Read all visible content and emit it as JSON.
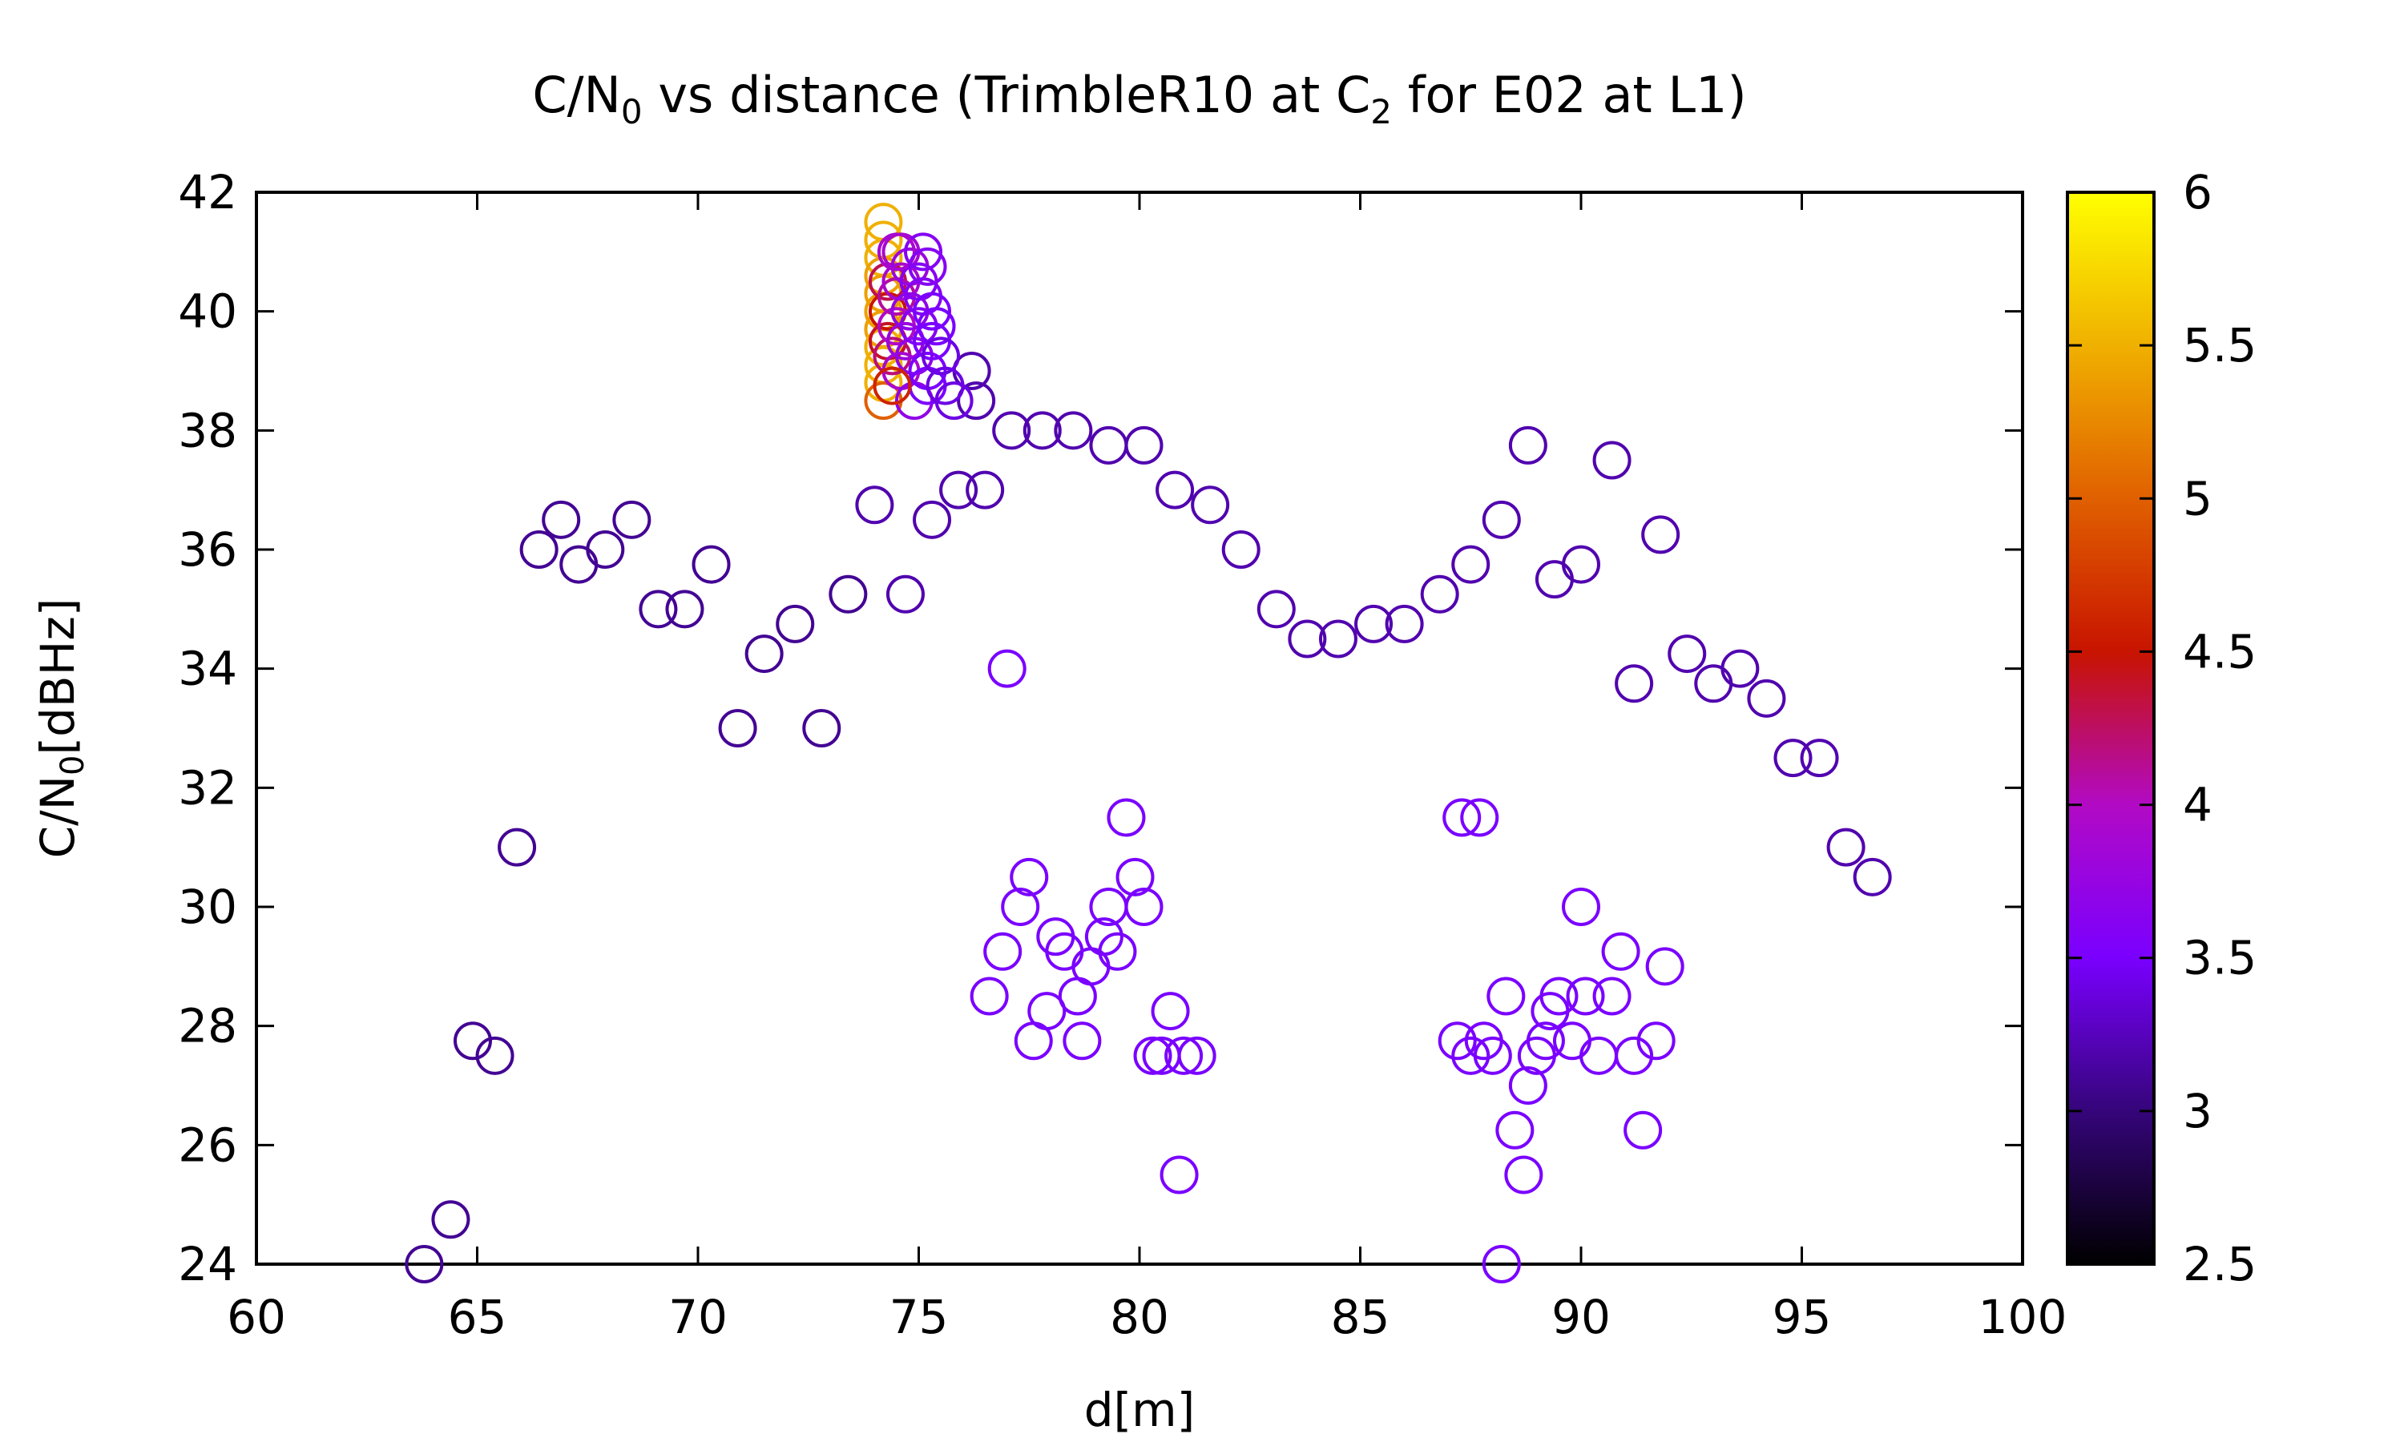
{
  "chart_data": {
    "type": "scatter",
    "title_main": "C/N",
    "title_main_sub": "0",
    "title_mid": " vs distance (TrimbleR10 at C",
    "title_mid_sub": "2",
    "title_end": " for E02 at L1)",
    "xlabel": "d[m]",
    "ylabel_main": "C/N",
    "ylabel_sub": "0",
    "ylabel_end": "[dBHz]",
    "xlim": [
      60,
      100
    ],
    "ylim": [
      24,
      42
    ],
    "xticks": [
      "60",
      "65",
      "70",
      "75",
      "80",
      "85",
      "90",
      "95",
      "100"
    ],
    "yticks": [
      "24",
      "26",
      "28",
      "30",
      "32",
      "34",
      "36",
      "38",
      "40",
      "42"
    ],
    "colorbar": {
      "range": [
        2.5,
        6
      ],
      "ticks": [
        "2.5",
        "3",
        "3.5",
        "4",
        "4.5",
        "5",
        "5.5",
        "6"
      ]
    },
    "points": [
      {
        "x": 63.8,
        "y": 24.0,
        "c": 3.1
      },
      {
        "x": 64.4,
        "y": 24.75,
        "c": 3.1
      },
      {
        "x": 64.9,
        "y": 27.75,
        "c": 3.1
      },
      {
        "x": 65.4,
        "y": 27.5,
        "c": 3.1
      },
      {
        "x": 65.9,
        "y": 31.0,
        "c": 3.1
      },
      {
        "x": 66.4,
        "y": 36.0,
        "c": 3.1
      },
      {
        "x": 66.9,
        "y": 36.5,
        "c": 3.1
      },
      {
        "x": 67.3,
        "y": 35.75,
        "c": 3.1
      },
      {
        "x": 67.9,
        "y": 36.0,
        "c": 3.1
      },
      {
        "x": 68.5,
        "y": 36.5,
        "c": 3.1
      },
      {
        "x": 69.1,
        "y": 35.0,
        "c": 3.1
      },
      {
        "x": 69.7,
        "y": 35.0,
        "c": 3.1
      },
      {
        "x": 70.3,
        "y": 35.75,
        "c": 3.1
      },
      {
        "x": 70.9,
        "y": 33.0,
        "c": 3.1
      },
      {
        "x": 71.5,
        "y": 34.25,
        "c": 3.1
      },
      {
        "x": 72.2,
        "y": 34.75,
        "c": 3.1
      },
      {
        "x": 72.8,
        "y": 33.0,
        "c": 3.1
      },
      {
        "x": 73.4,
        "y": 35.25,
        "c": 3.1
      },
      {
        "x": 74.0,
        "y": 36.75,
        "c": 3.2
      },
      {
        "x": 74.7,
        "y": 35.25,
        "c": 3.2
      },
      {
        "x": 75.3,
        "y": 36.5,
        "c": 3.2
      },
      {
        "x": 75.9,
        "y": 37.0,
        "c": 3.2
      },
      {
        "x": 76.5,
        "y": 37.0,
        "c": 3.2
      },
      {
        "x": 76.3,
        "y": 38.5,
        "c": 3.2
      },
      {
        "x": 76.2,
        "y": 39.0,
        "c": 3.2
      },
      {
        "x": 77.1,
        "y": 38.0,
        "c": 3.2
      },
      {
        "x": 77.8,
        "y": 38.0,
        "c": 3.2
      },
      {
        "x": 78.5,
        "y": 38.0,
        "c": 3.2
      },
      {
        "x": 79.3,
        "y": 37.75,
        "c": 3.2
      },
      {
        "x": 80.1,
        "y": 37.75,
        "c": 3.2
      },
      {
        "x": 80.8,
        "y": 37.0,
        "c": 3.2
      },
      {
        "x": 81.6,
        "y": 36.75,
        "c": 3.2
      },
      {
        "x": 82.3,
        "y": 36.0,
        "c": 3.2
      },
      {
        "x": 83.1,
        "y": 35.0,
        "c": 3.2
      },
      {
        "x": 83.8,
        "y": 34.5,
        "c": 3.2
      },
      {
        "x": 84.5,
        "y": 34.5,
        "c": 3.2
      },
      {
        "x": 85.3,
        "y": 34.75,
        "c": 3.2
      },
      {
        "x": 86.0,
        "y": 34.75,
        "c": 3.2
      },
      {
        "x": 86.8,
        "y": 35.25,
        "c": 3.2
      },
      {
        "x": 87.5,
        "y": 35.75,
        "c": 3.2
      },
      {
        "x": 88.2,
        "y": 36.5,
        "c": 3.2
      },
      {
        "x": 88.8,
        "y": 37.75,
        "c": 3.2
      },
      {
        "x": 89.4,
        "y": 35.5,
        "c": 3.2
      },
      {
        "x": 90.0,
        "y": 35.75,
        "c": 3.2
      },
      {
        "x": 90.7,
        "y": 37.5,
        "c": 3.2
      },
      {
        "x": 91.2,
        "y": 33.75,
        "c": 3.2
      },
      {
        "x": 91.8,
        "y": 36.25,
        "c": 3.2
      },
      {
        "x": 92.4,
        "y": 34.25,
        "c": 3.2
      },
      {
        "x": 93.0,
        "y": 33.75,
        "c": 3.2
      },
      {
        "x": 93.6,
        "y": 34.0,
        "c": 3.2
      },
      {
        "x": 94.2,
        "y": 33.5,
        "c": 3.2
      },
      {
        "x": 94.8,
        "y": 32.5,
        "c": 3.2
      },
      {
        "x": 95.4,
        "y": 32.5,
        "c": 3.2
      },
      {
        "x": 96.0,
        "y": 31.0,
        "c": 3.2
      },
      {
        "x": 96.6,
        "y": 30.5,
        "c": 3.2
      },
      {
        "x": 77.0,
        "y": 34.0,
        "c": 3.5
      },
      {
        "x": 79.7,
        "y": 31.5,
        "c": 3.5
      },
      {
        "x": 77.5,
        "y": 30.5,
        "c": 3.5
      },
      {
        "x": 77.3,
        "y": 30.0,
        "c": 3.5
      },
      {
        "x": 76.9,
        "y": 29.25,
        "c": 3.5
      },
      {
        "x": 76.6,
        "y": 28.5,
        "c": 3.5
      },
      {
        "x": 77.9,
        "y": 28.25,
        "c": 3.5
      },
      {
        "x": 77.6,
        "y": 27.75,
        "c": 3.5
      },
      {
        "x": 78.1,
        "y": 29.5,
        "c": 3.5
      },
      {
        "x": 78.3,
        "y": 29.25,
        "c": 3.5
      },
      {
        "x": 78.6,
        "y": 28.5,
        "c": 3.5
      },
      {
        "x": 78.9,
        "y": 29.0,
        "c": 3.5
      },
      {
        "x": 78.7,
        "y": 27.75,
        "c": 3.5
      },
      {
        "x": 79.2,
        "y": 29.5,
        "c": 3.5
      },
      {
        "x": 79.5,
        "y": 29.25,
        "c": 3.5
      },
      {
        "x": 79.3,
        "y": 30.0,
        "c": 3.5
      },
      {
        "x": 79.9,
        "y": 30.5,
        "c": 3.5
      },
      {
        "x": 80.1,
        "y": 30.0,
        "c": 3.5
      },
      {
        "x": 80.3,
        "y": 27.5,
        "c": 3.5
      },
      {
        "x": 80.5,
        "y": 27.5,
        "c": 3.5
      },
      {
        "x": 80.7,
        "y": 28.25,
        "c": 3.5
      },
      {
        "x": 81.0,
        "y": 27.5,
        "c": 3.5
      },
      {
        "x": 81.3,
        "y": 27.5,
        "c": 3.5
      },
      {
        "x": 80.9,
        "y": 25.5,
        "c": 3.5
      },
      {
        "x": 87.3,
        "y": 31.5,
        "c": 3.5
      },
      {
        "x": 87.7,
        "y": 31.5,
        "c": 3.5
      },
      {
        "x": 87.2,
        "y": 27.75,
        "c": 3.5
      },
      {
        "x": 87.5,
        "y": 27.5,
        "c": 3.5
      },
      {
        "x": 87.8,
        "y": 27.75,
        "c": 3.5
      },
      {
        "x": 88.0,
        "y": 27.5,
        "c": 3.5
      },
      {
        "x": 88.3,
        "y": 28.5,
        "c": 3.5
      },
      {
        "x": 88.5,
        "y": 26.25,
        "c": 3.5
      },
      {
        "x": 88.7,
        "y": 25.5,
        "c": 3.5
      },
      {
        "x": 88.2,
        "y": 24.0,
        "c": 3.5
      },
      {
        "x": 88.8,
        "y": 27.0,
        "c": 3.5
      },
      {
        "x": 89.0,
        "y": 27.5,
        "c": 3.5
      },
      {
        "x": 89.2,
        "y": 27.75,
        "c": 3.5
      },
      {
        "x": 89.3,
        "y": 28.25,
        "c": 3.5
      },
      {
        "x": 89.5,
        "y": 28.5,
        "c": 3.5
      },
      {
        "x": 89.8,
        "y": 27.75,
        "c": 3.5
      },
      {
        "x": 90.0,
        "y": 30.0,
        "c": 3.5
      },
      {
        "x": 90.1,
        "y": 28.5,
        "c": 3.5
      },
      {
        "x": 90.4,
        "y": 27.5,
        "c": 3.5
      },
      {
        "x": 90.7,
        "y": 28.5,
        "c": 3.5
      },
      {
        "x": 90.9,
        "y": 29.25,
        "c": 3.5
      },
      {
        "x": 91.2,
        "y": 27.5,
        "c": 3.5
      },
      {
        "x": 91.4,
        "y": 26.25,
        "c": 3.5
      },
      {
        "x": 91.7,
        "y": 27.75,
        "c": 3.5
      },
      {
        "x": 91.9,
        "y": 29.0,
        "c": 3.5
      },
      {
        "x": 74.2,
        "y": 41.5,
        "c": 5.5
      },
      {
        "x": 74.2,
        "y": 41.2,
        "c": 5.5
      },
      {
        "x": 74.2,
        "y": 40.9,
        "c": 5.5
      },
      {
        "x": 74.2,
        "y": 40.6,
        "c": 5.4
      },
      {
        "x": 74.2,
        "y": 40.3,
        "c": 5.4
      },
      {
        "x": 74.2,
        "y": 40.0,
        "c": 5.4
      },
      {
        "x": 74.2,
        "y": 39.7,
        "c": 5.4
      },
      {
        "x": 74.2,
        "y": 39.4,
        "c": 5.5
      },
      {
        "x": 74.2,
        "y": 39.1,
        "c": 5.5
      },
      {
        "x": 74.2,
        "y": 38.8,
        "c": 5.5
      },
      {
        "x": 74.2,
        "y": 38.5,
        "c": 5.0
      },
      {
        "x": 74.3,
        "y": 40.5,
        "c": 4.3
      },
      {
        "x": 74.3,
        "y": 40.0,
        "c": 4.5
      },
      {
        "x": 74.3,
        "y": 39.5,
        "c": 4.4
      },
      {
        "x": 74.4,
        "y": 39.25,
        "c": 4.2
      },
      {
        "x": 74.5,
        "y": 40.25,
        "c": 4.1
      },
      {
        "x": 74.5,
        "y": 39.75,
        "c": 4.0
      },
      {
        "x": 74.6,
        "y": 41.0,
        "c": 3.9
      },
      {
        "x": 74.6,
        "y": 40.5,
        "c": 3.9
      },
      {
        "x": 74.6,
        "y": 39.0,
        "c": 3.9
      },
      {
        "x": 74.7,
        "y": 39.5,
        "c": 3.8
      },
      {
        "x": 74.8,
        "y": 40.75,
        "c": 3.8
      },
      {
        "x": 74.8,
        "y": 40.0,
        "c": 3.7
      },
      {
        "x": 74.9,
        "y": 38.5,
        "c": 3.7
      },
      {
        "x": 74.9,
        "y": 39.25,
        "c": 3.7
      },
      {
        "x": 75.0,
        "y": 40.5,
        "c": 3.6
      },
      {
        "x": 75.0,
        "y": 39.75,
        "c": 3.6
      },
      {
        "x": 75.1,
        "y": 41.0,
        "c": 3.6
      },
      {
        "x": 75.1,
        "y": 40.25,
        "c": 3.6
      },
      {
        "x": 75.2,
        "y": 39.0,
        "c": 3.5
      },
      {
        "x": 75.2,
        "y": 38.75,
        "c": 3.5
      },
      {
        "x": 75.3,
        "y": 40.0,
        "c": 3.5
      },
      {
        "x": 75.3,
        "y": 39.5,
        "c": 3.5
      },
      {
        "x": 75.4,
        "y": 39.75,
        "c": 3.5
      },
      {
        "x": 75.5,
        "y": 39.25,
        "c": 3.4
      },
      {
        "x": 75.6,
        "y": 38.75,
        "c": 3.4
      },
      {
        "x": 75.8,
        "y": 38.5,
        "c": 3.4
      },
      {
        "x": 74.4,
        "y": 38.75,
        "c": 4.6
      },
      {
        "x": 74.5,
        "y": 41.0,
        "c": 3.9
      },
      {
        "x": 75.2,
        "y": 40.75,
        "c": 3.6
      }
    ]
  }
}
